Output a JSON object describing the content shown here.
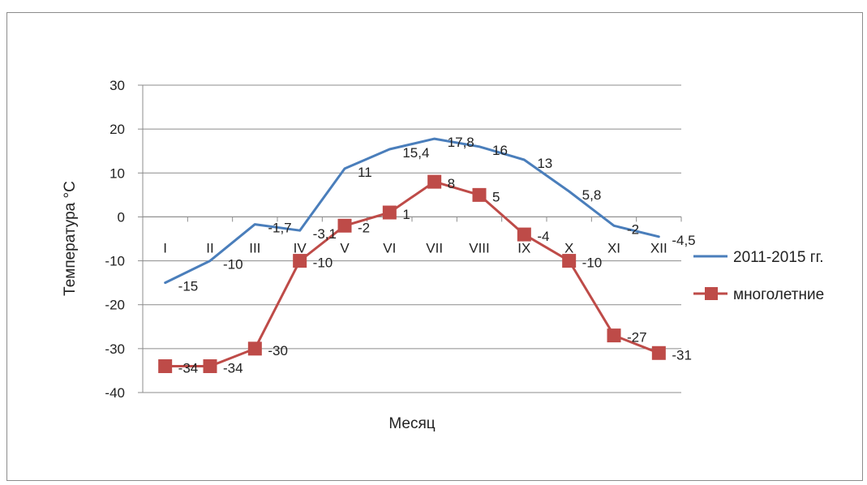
{
  "chart_data": {
    "type": "line",
    "title": "",
    "xlabel": "Месяц",
    "ylabel": "Температура  °С",
    "ylim": [
      -40,
      30
    ],
    "y_ticks": [
      "30",
      "20",
      "10",
      "0",
      "-10",
      "-20",
      "-30",
      "-40"
    ],
    "grid": true,
    "legend_position": "right",
    "categories": [
      "I",
      "II",
      "III",
      "IV",
      "V",
      "VI",
      "VII",
      "VIII",
      "IX",
      "X",
      "XI",
      "XII"
    ],
    "series": [
      {
        "name": "2011-2015 гг.",
        "color": "#4a7ebb",
        "marker": "none",
        "values": [
          -15,
          -10,
          -1.7,
          -3.1,
          11,
          15.4,
          17.8,
          16,
          13,
          5.8,
          -2,
          -4.5
        ],
        "labels": [
          "-15",
          "-10",
          "-1,7",
          "-3,1",
          "11",
          "15,4",
          "17,8",
          "16",
          "13",
          "5,8",
          "-2",
          "-4,5"
        ]
      },
      {
        "name": "многолетние",
        "color": "#be4b48",
        "marker": "square",
        "values": [
          -34,
          -34,
          -30,
          -10,
          -2,
          1,
          8,
          5,
          -4,
          -10,
          -27,
          -31
        ],
        "labels": [
          "-34",
          "-34",
          "-30",
          "-10",
          "-2",
          "1",
          "8",
          "5",
          "-4",
          "-10",
          "-27",
          "-31"
        ]
      }
    ]
  }
}
